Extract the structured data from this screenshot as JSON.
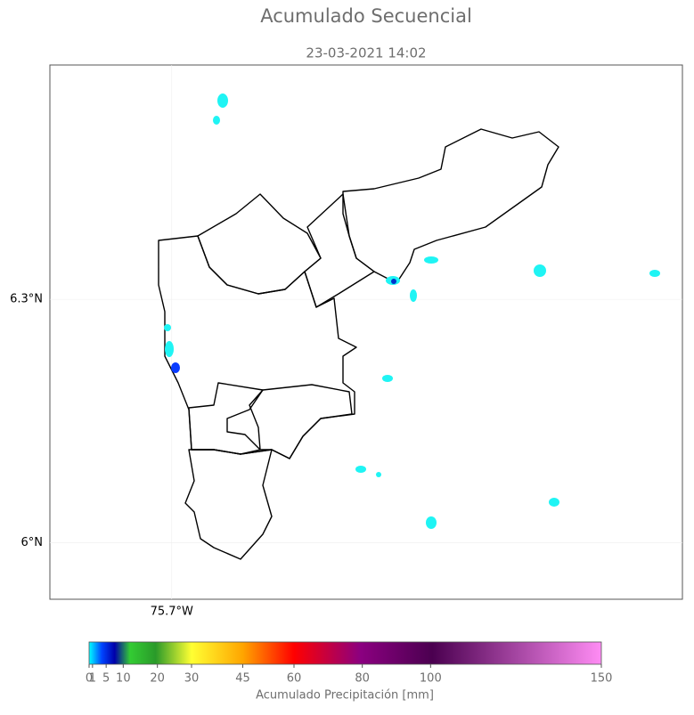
{
  "map": {
    "title": "Acumulado Secuencial",
    "subtitle": "23-03-2021 14:02",
    "latlim": [
      5.93,
      6.589
    ],
    "lonlim": [
      -75.851,
      -75.067
    ],
    "lat_ticks": [
      {
        "value": 6.3,
        "label": "6.3°N"
      },
      {
        "value": 6,
        "label": "6°N"
      }
    ],
    "lon_ticks": [
      {
        "value": -75.7,
        "label": "75.7°W"
      }
    ]
  },
  "colorbar": {
    "lim": [
      0,
      150
    ],
    "ticks": [
      0,
      1,
      5,
      10,
      20,
      30,
      45,
      60,
      80,
      100,
      150
    ],
    "label": "Acumulado Precipitación [mm]"
  }
}
